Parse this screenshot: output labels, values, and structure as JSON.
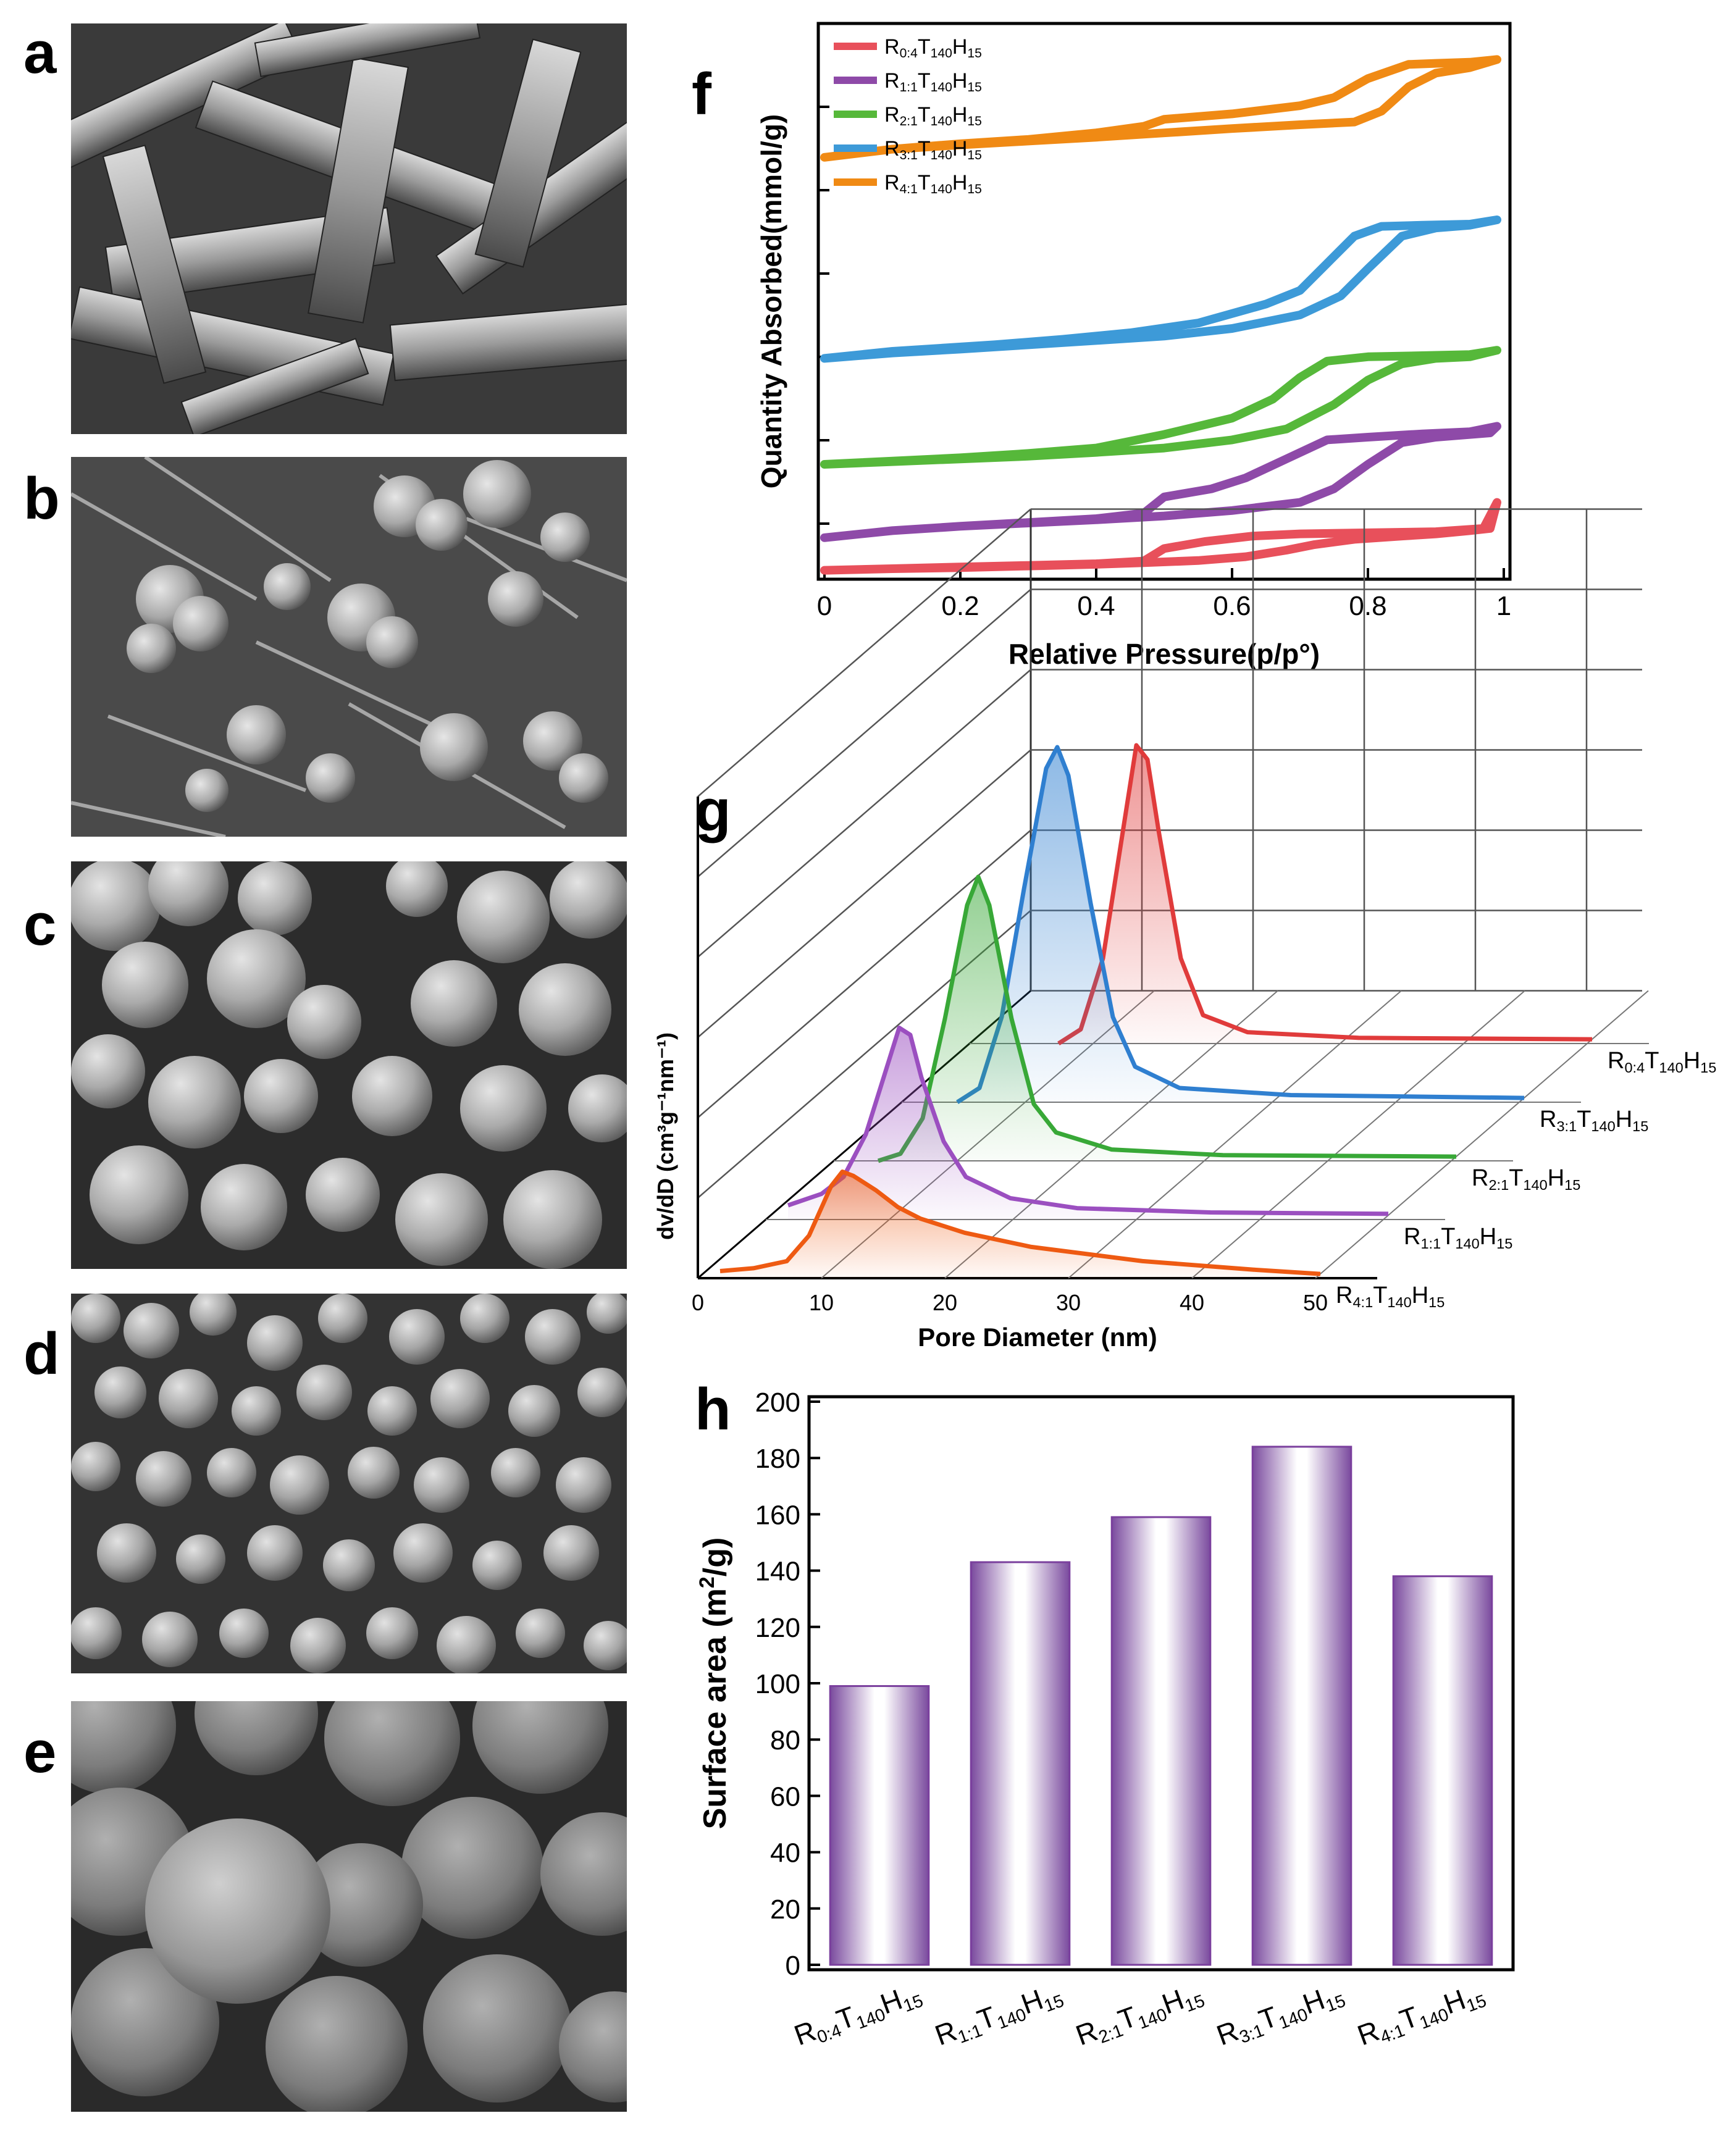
{
  "panels": {
    "a": "a",
    "b": "b",
    "c": "c",
    "d": "d",
    "e": "e",
    "f": "f",
    "g": "g",
    "h": "h"
  },
  "colors": {
    "R0_4": "#e8505b",
    "R1_1": "#8e4aa8",
    "R2_1": "#56b83a",
    "R3_1": "#3d9ad8",
    "R4_1": "#f08a14",
    "g_R0_4": "#e03b3b",
    "g_R3_1": "#2f7fd0",
    "g_R2_1": "#38a837",
    "g_R1_1": "#9b4fc0",
    "g_R4_1": "#ee5a12",
    "bar_edge": "#7a3f9d",
    "bar_dark": "#8b5aad"
  },
  "chart_data": [
    {
      "panel": "f",
      "type": "line",
      "xlabel": "Relative Pressure(p/p°)",
      "ylabel": "Quantity Absorbed(mmol/g)",
      "xlim": [
        0,
        1
      ],
      "xticks": [
        "0",
        "0.2",
        "0.4",
        "0.6",
        "0.8",
        "1"
      ],
      "legend_position": "top-left",
      "grid": false,
      "series": [
        {
          "name_base": "R",
          "name_sub1": "0:4",
          "name_mid": "T",
          "name_sub2": "140",
          "name_mid2": "H",
          "name_sub3": "15",
          "key": "R0_4",
          "adsorption": [
            [
              0,
              0.05
            ],
            [
              0.1,
              0.08
            ],
            [
              0.2,
              0.1
            ],
            [
              0.3,
              0.13
            ],
            [
              0.4,
              0.16
            ],
            [
              0.47,
              0.19
            ],
            [
              0.55,
              0.23
            ],
            [
              0.62,
              0.3
            ],
            [
              0.68,
              0.42
            ],
            [
              0.72,
              0.52
            ],
            [
              0.78,
              0.62
            ],
            [
              0.85,
              0.68
            ],
            [
              0.9,
              0.72
            ],
            [
              0.95,
              0.78
            ],
            [
              0.98,
              0.82
            ],
            [
              0.99,
              1.3
            ]
          ],
          "desorption": [
            [
              0.99,
              1.3
            ],
            [
              0.97,
              0.82
            ],
            [
              0.9,
              0.76
            ],
            [
              0.8,
              0.74
            ],
            [
              0.7,
              0.72
            ],
            [
              0.63,
              0.68
            ],
            [
              0.56,
              0.58
            ],
            [
              0.5,
              0.45
            ],
            [
              0.47,
              0.22
            ],
            [
              0.4,
              0.17
            ],
            [
              0.3,
              0.14
            ],
            [
              0.2,
              0.11
            ],
            [
              0.1,
              0.08
            ],
            [
              0,
              0.05
            ]
          ]
        },
        {
          "name_base": "R",
          "name_sub1": "1:1",
          "name_mid": "T",
          "name_sub2": "140",
          "name_mid2": "H",
          "name_sub3": "15",
          "key": "R1_1",
          "adsorption": [
            [
              0,
              0.65
            ],
            [
              0.1,
              0.78
            ],
            [
              0.2,
              0.86
            ],
            [
              0.3,
              0.92
            ],
            [
              0.4,
              0.98
            ],
            [
              0.5,
              1.05
            ],
            [
              0.6,
              1.15
            ],
            [
              0.7,
              1.3
            ],
            [
              0.75,
              1.55
            ],
            [
              0.8,
              2.0
            ],
            [
              0.85,
              2.4
            ],
            [
              0.9,
              2.5
            ],
            [
              0.95,
              2.55
            ],
            [
              0.98,
              2.58
            ],
            [
              0.99,
              2.7
            ]
          ],
          "desorption": [
            [
              0.99,
              2.7
            ],
            [
              0.95,
              2.6
            ],
            [
              0.88,
              2.56
            ],
            [
              0.8,
              2.5
            ],
            [
              0.74,
              2.45
            ],
            [
              0.68,
              2.1
            ],
            [
              0.62,
              1.75
            ],
            [
              0.57,
              1.55
            ],
            [
              0.5,
              1.4
            ],
            [
              0.47,
              1.1
            ],
            [
              0.4,
              1.0
            ],
            [
              0.3,
              0.93
            ],
            [
              0.2,
              0.86
            ],
            [
              0.1,
              0.78
            ],
            [
              0,
              0.65
            ]
          ]
        },
        {
          "name_base": "R",
          "name_sub1": "2:1",
          "name_mid": "T",
          "name_sub2": "140",
          "name_mid2": "H",
          "name_sub3": "15",
          "key": "R2_1",
          "adsorption": [
            [
              0,
              2.0
            ],
            [
              0.1,
              2.05
            ],
            [
              0.2,
              2.1
            ],
            [
              0.3,
              2.15
            ],
            [
              0.4,
              2.22
            ],
            [
              0.5,
              2.3
            ],
            [
              0.6,
              2.45
            ],
            [
              0.68,
              2.65
            ],
            [
              0.75,
              3.1
            ],
            [
              0.8,
              3.55
            ],
            [
              0.85,
              3.85
            ],
            [
              0.9,
              3.95
            ],
            [
              0.95,
              3.98
            ],
            [
              0.99,
              4.1
            ]
          ],
          "desorption": [
            [
              0.99,
              4.1
            ],
            [
              0.95,
              4.02
            ],
            [
              0.88,
              4.0
            ],
            [
              0.8,
              3.98
            ],
            [
              0.74,
              3.9
            ],
            [
              0.7,
              3.6
            ],
            [
              0.66,
              3.2
            ],
            [
              0.6,
              2.85
            ],
            [
              0.5,
              2.55
            ],
            [
              0.4,
              2.3
            ],
            [
              0.3,
              2.2
            ],
            [
              0.2,
              2.12
            ],
            [
              0.1,
              2.06
            ],
            [
              0,
              2.0
            ]
          ]
        },
        {
          "name_base": "R",
          "name_sub1": "3:1",
          "name_mid": "T",
          "name_sub2": "140",
          "name_mid2": "H",
          "name_sub3": "15",
          "key": "R3_1",
          "adsorption": [
            [
              0,
              3.95
            ],
            [
              0.1,
              4.05
            ],
            [
              0.2,
              4.12
            ],
            [
              0.3,
              4.2
            ],
            [
              0.4,
              4.28
            ],
            [
              0.5,
              4.36
            ],
            [
              0.6,
              4.5
            ],
            [
              0.7,
              4.75
            ],
            [
              0.76,
              5.1
            ],
            [
              0.8,
              5.6
            ],
            [
              0.85,
              6.2
            ],
            [
              0.9,
              6.35
            ],
            [
              0.95,
              6.4
            ],
            [
              0.99,
              6.5
            ]
          ],
          "desorption": [
            [
              0.99,
              6.5
            ],
            [
              0.95,
              6.42
            ],
            [
              0.88,
              6.4
            ],
            [
              0.82,
              6.38
            ],
            [
              0.78,
              6.2
            ],
            [
              0.74,
              5.7
            ],
            [
              0.7,
              5.2
            ],
            [
              0.65,
              4.95
            ],
            [
              0.55,
              4.6
            ],
            [
              0.45,
              4.42
            ],
            [
              0.35,
              4.3
            ],
            [
              0.25,
              4.2
            ],
            [
              0.1,
              4.08
            ],
            [
              0,
              3.95
            ]
          ]
        },
        {
          "name_base": "R",
          "name_sub1": "4:1",
          "name_mid": "T",
          "name_sub2": "140",
          "name_mid2": "H",
          "name_sub3": "15",
          "key": "R4_1",
          "adsorption": [
            [
              0,
              7.65
            ],
            [
              0.1,
              7.8
            ],
            [
              0.2,
              7.88
            ],
            [
              0.3,
              7.95
            ],
            [
              0.4,
              8.02
            ],
            [
              0.5,
              8.1
            ],
            [
              0.6,
              8.18
            ],
            [
              0.7,
              8.25
            ],
            [
              0.78,
              8.3
            ],
            [
              0.82,
              8.5
            ],
            [
              0.86,
              8.95
            ],
            [
              0.9,
              9.2
            ],
            [
              0.95,
              9.3
            ],
            [
              0.99,
              9.45
            ]
          ],
          "desorption": [
            [
              0.99,
              9.45
            ],
            [
              0.95,
              9.4
            ],
            [
              0.9,
              9.38
            ],
            [
              0.86,
              9.36
            ],
            [
              0.8,
              9.1
            ],
            [
              0.75,
              8.75
            ],
            [
              0.7,
              8.6
            ],
            [
              0.6,
              8.45
            ],
            [
              0.5,
              8.35
            ],
            [
              0.47,
              8.22
            ],
            [
              0.4,
              8.1
            ],
            [
              0.3,
              7.98
            ],
            [
              0.2,
              7.9
            ],
            [
              0.1,
              7.8
            ],
            [
              0,
              7.65
            ]
          ]
        }
      ],
      "ylim": [
        0,
        10
      ]
    },
    {
      "panel": "g",
      "type": "line",
      "style": "3d-waterfall",
      "xlabel": "Pore Diameter (nm)",
      "ylabel": "dv/dD (cm³g⁻¹nm⁻¹)",
      "xlim": [
        0,
        55
      ],
      "xticks": [
        "0",
        "10",
        "20",
        "30",
        "40",
        "50"
      ],
      "series": [
        {
          "name_base": "R",
          "name_sub1": "4:1",
          "name_mid": "T",
          "name_sub2": "140",
          "name_mid2": "H",
          "name_sub3": "15",
          "key": "g_R4_1",
          "depth": 0,
          "points": [
            [
              2,
              0.05
            ],
            [
              5,
              0.07
            ],
            [
              8,
              0.12
            ],
            [
              10,
              0.3
            ],
            [
              12,
              0.65
            ],
            [
              13,
              0.75
            ],
            [
              14,
              0.72
            ],
            [
              16,
              0.62
            ],
            [
              18,
              0.5
            ],
            [
              20,
              0.42
            ],
            [
              24,
              0.32
            ],
            [
              30,
              0.22
            ],
            [
              40,
              0.12
            ],
            [
              50,
              0.06
            ],
            [
              56,
              0.03
            ]
          ]
        },
        {
          "name_base": "R",
          "name_sub1": "1:1",
          "name_mid": "T",
          "name_sub2": "140",
          "name_mid2": "H",
          "name_sub3": "15",
          "key": "g_R1_1",
          "depth": 1,
          "points": [
            [
              2,
              0.1
            ],
            [
              5,
              0.18
            ],
            [
              7,
              0.3
            ],
            [
              9,
              0.6
            ],
            [
              11,
              1.1
            ],
            [
              12,
              1.35
            ],
            [
              13,
              1.3
            ],
            [
              14,
              1.0
            ],
            [
              16,
              0.55
            ],
            [
              18,
              0.3
            ],
            [
              22,
              0.15
            ],
            [
              28,
              0.08
            ],
            [
              40,
              0.05
            ],
            [
              56,
              0.04
            ]
          ]
        },
        {
          "name_base": "R",
          "name_sub1": "2:1",
          "name_mid": "T",
          "name_sub2": "140",
          "name_mid2": "H",
          "name_sub3": "15",
          "key": "g_R2_1",
          "depth": 2,
          "points": [
            [
              4,
              0.0
            ],
            [
              6,
              0.05
            ],
            [
              8,
              0.3
            ],
            [
              10,
              1.0
            ],
            [
              12,
              1.8
            ],
            [
              13,
              2.0
            ],
            [
              14,
              1.8
            ],
            [
              16,
              1.0
            ],
            [
              18,
              0.4
            ],
            [
              20,
              0.2
            ],
            [
              25,
              0.08
            ],
            [
              35,
              0.04
            ],
            [
              56,
              0.03
            ]
          ]
        },
        {
          "name_base": "R",
          "name_sub1": "3:1",
          "name_mid": "T",
          "name_sub2": "140",
          "name_mid2": "H",
          "name_sub3": "15",
          "key": "g_R3_1",
          "depth": 3,
          "points": [
            [
              5,
              0.0
            ],
            [
              7,
              0.1
            ],
            [
              9,
              0.6
            ],
            [
              11,
              1.5
            ],
            [
              13,
              2.35
            ],
            [
              14,
              2.5
            ],
            [
              15,
              2.3
            ],
            [
              17,
              1.4
            ],
            [
              19,
              0.6
            ],
            [
              21,
              0.25
            ],
            [
              25,
              0.1
            ],
            [
              35,
              0.05
            ],
            [
              56,
              0.03
            ]
          ]
        },
        {
          "name_base": "R",
          "name_sub1": "0:4",
          "name_mid": "T",
          "name_sub2": "140",
          "name_mid2": "H",
          "name_sub3": "15",
          "key": "g_R0_4",
          "depth": 4,
          "points": [
            [
              8,
              0.0
            ],
            [
              10,
              0.1
            ],
            [
              12,
              0.6
            ],
            [
              14,
              1.6
            ],
            [
              15,
              2.1
            ],
            [
              16,
              2.0
            ],
            [
              17,
              1.5
            ],
            [
              19,
              0.6
            ],
            [
              21,
              0.2
            ],
            [
              25,
              0.08
            ],
            [
              35,
              0.04
            ],
            [
              56,
              0.03
            ]
          ]
        }
      ]
    },
    {
      "panel": "h",
      "type": "bar",
      "ylabel_main": "Surface area (m",
      "ylabel_sup": "2",
      "ylabel_end": "/g)",
      "ylim": [
        0,
        200
      ],
      "yticks": [
        "0",
        "20",
        "40",
        "60",
        "80",
        "100",
        "120",
        "140",
        "160",
        "180",
        "200"
      ],
      "categories": [
        {
          "base": "R",
          "sub1": "0:4",
          "mid": "T",
          "sub2": "140",
          "mid2": "H",
          "sub3": "15"
        },
        {
          "base": "R",
          "sub1": "1:1",
          "mid": "T",
          "sub2": "140",
          "mid2": "H",
          "sub3": "15"
        },
        {
          "base": "R",
          "sub1": "2:1",
          "mid": "T",
          "sub2": "140",
          "mid2": "H",
          "sub3": "15"
        },
        {
          "base": "R",
          "sub1": "3:1",
          "mid": "T",
          "sub2": "140",
          "mid2": "H",
          "sub3": "15"
        },
        {
          "base": "R",
          "sub1": "4:1",
          "mid": "T",
          "sub2": "140",
          "mid2": "H",
          "sub3": "15"
        }
      ],
      "values": [
        99,
        143,
        159,
        184,
        138
      ]
    }
  ]
}
